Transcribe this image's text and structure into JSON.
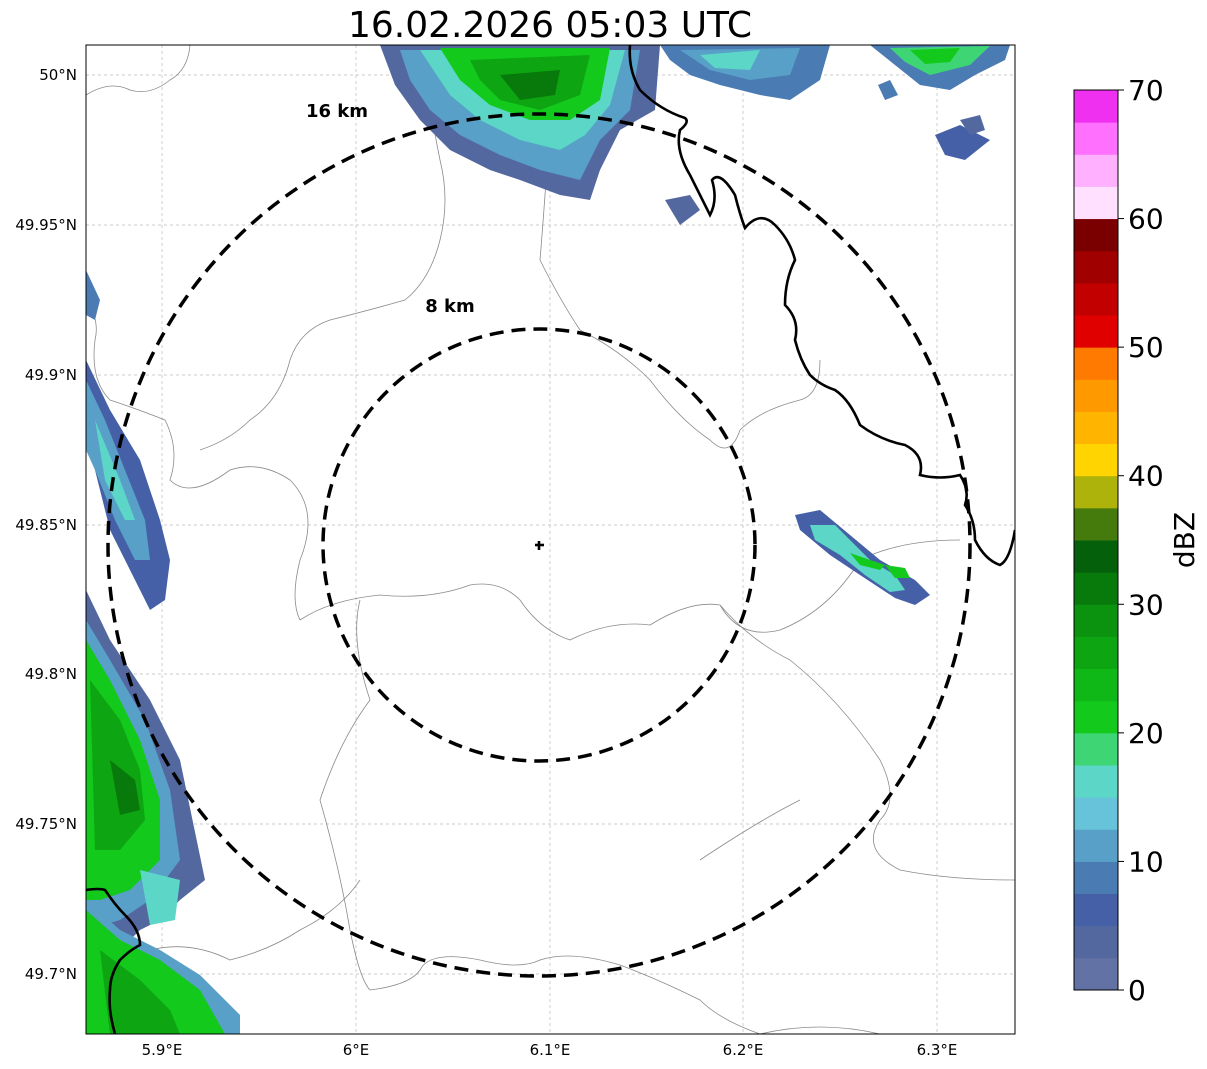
{
  "title": "16.02.2026 05:03 UTC",
  "axes": {
    "lon_ticks": [
      "5.9°E",
      "6°E",
      "6.1°E",
      "6.2°E",
      "6.3°E"
    ],
    "lat_ticks": [
      "50°N",
      "49.95°N",
      "49.9°N",
      "49.85°N",
      "49.8°N",
      "49.75°N",
      "49.7°N"
    ],
    "grid": true
  },
  "range_rings": [
    {
      "label": "8 km",
      "radius_km": 8
    },
    {
      "label": "16 km",
      "radius_km": 16
    }
  ],
  "radar_site_marker": "+",
  "colorbar": {
    "unit": "dBZ",
    "tick_labels": [
      "0",
      "10",
      "20",
      "30",
      "40",
      "50",
      "60",
      "70"
    ],
    "colors": [
      "#6272a4",
      "#5468a0",
      "#4560a6",
      "#4a7bb3",
      "#58a0c8",
      "#66c3d9",
      "#5cd6c6",
      "#3ed674",
      "#12c91c",
      "#10b817",
      "#0ea512",
      "#0b930f",
      "#087a0b",
      "#04600a",
      "#457a0d",
      "#adb30a",
      "#ffd400",
      "#ffb400",
      "#ff9900",
      "#ff7a00",
      "#e00000",
      "#c20000",
      "#a00000",
      "#7a0000",
      "#ffe0ff",
      "#ffb0ff",
      "#ff70ff",
      "#f030f0"
    ]
  }
}
